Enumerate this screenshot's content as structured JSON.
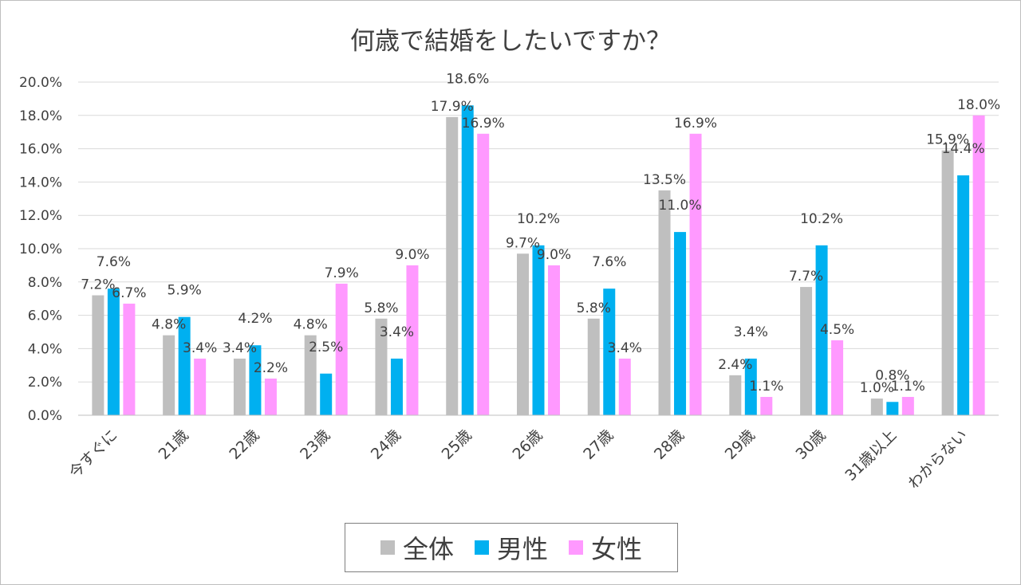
{
  "chart_data": {
    "type": "bar",
    "title": "何歳で結婚をしたいですか？",
    "categories": [
      "今すぐに",
      "21歳",
      "22歳",
      "23歳",
      "24歳",
      "25歳",
      "26歳",
      "27歳",
      "28歳",
      "29歳",
      "30歳",
      "31歳以上",
      "わからない"
    ],
    "series": [
      {
        "name": "全体",
        "color": "#bfbfbf",
        "values": [
          7.2,
          4.8,
          3.4,
          4.8,
          5.8,
          17.9,
          9.7,
          5.8,
          13.5,
          2.4,
          7.7,
          1.0,
          15.9
        ]
      },
      {
        "name": "男性",
        "color": "#00b0f0",
        "values": [
          7.6,
          5.9,
          4.2,
          2.5,
          3.4,
          18.6,
          10.2,
          7.6,
          11.0,
          3.4,
          10.2,
          0.8,
          14.4
        ]
      },
      {
        "name": "女性",
        "color": "#ff99ff",
        "values": [
          6.7,
          3.4,
          2.2,
          7.9,
          9.0,
          16.9,
          9.0,
          3.4,
          16.9,
          1.1,
          4.5,
          1.1,
          18.0
        ]
      }
    ],
    "ylim": [
      0,
      20
    ],
    "ytick_step": 2,
    "ytick_format": "%",
    "value_format": "%",
    "grid": true,
    "legend_position": "bottom"
  }
}
